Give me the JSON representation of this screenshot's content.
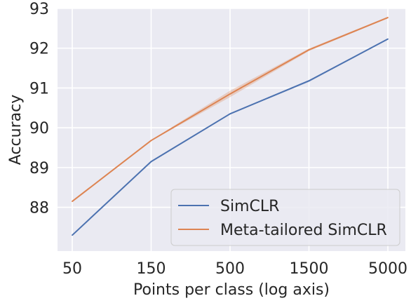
{
  "chart_data": {
    "type": "line",
    "xlabel": "Points per class (log axis)",
    "ylabel": "Accuracy",
    "x": [
      "50",
      "150",
      "500",
      "1500",
      "5000"
    ],
    "x_scale": "categorical",
    "ylim": [
      86.9,
      93.0
    ],
    "yticks": [
      88,
      89,
      90,
      91,
      92,
      93
    ],
    "grid": true,
    "legend_position": "bottom-right",
    "series": [
      {
        "name": "SimCLR",
        "color": "#4c72b0",
        "values": [
          87.3,
          89.15,
          90.35,
          91.18,
          92.23
        ],
        "band_lower": [
          87.3,
          89.15,
          90.34,
          91.15,
          92.22
        ],
        "band_upper": [
          87.3,
          89.15,
          90.36,
          91.2,
          92.24
        ]
      },
      {
        "name": "Meta-tailored SimCLR",
        "color": "#dd8452",
        "values": [
          88.15,
          89.68,
          90.85,
          91.96,
          92.77
        ],
        "band_lower": [
          88.14,
          89.67,
          90.77,
          91.93,
          92.75
        ],
        "band_upper": [
          88.16,
          89.69,
          90.93,
          91.99,
          92.79
        ]
      }
    ]
  }
}
